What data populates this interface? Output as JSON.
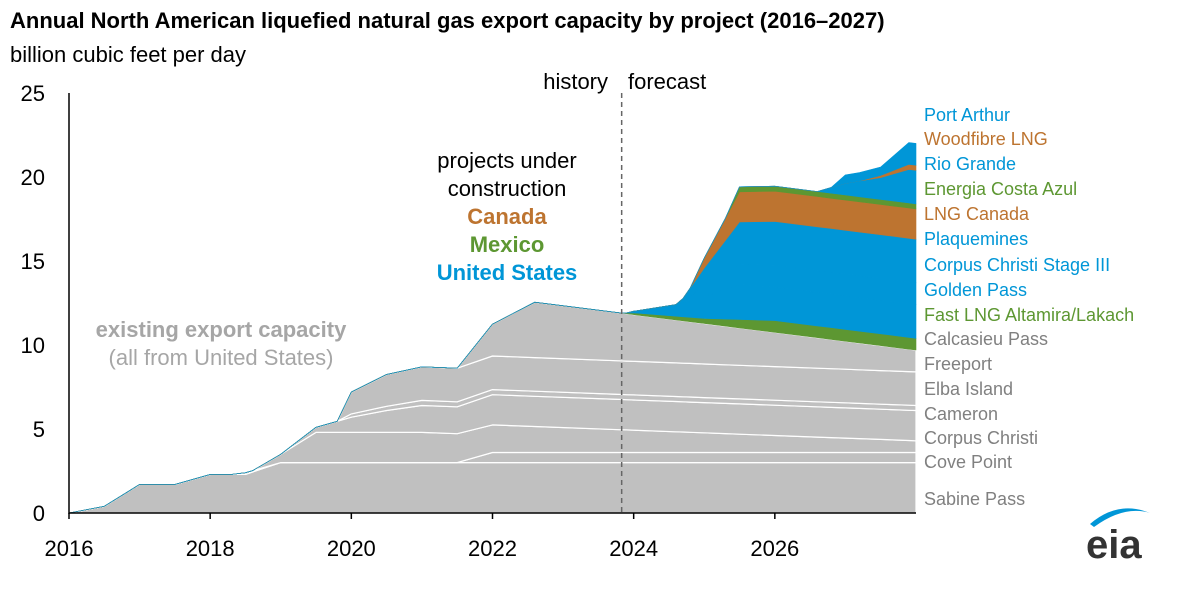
{
  "chart_data": {
    "type": "area",
    "title": "Annual North American liquefied natural gas export capacity by project (2016–2027)",
    "subtitle": "billion cubic feet per day",
    "xlim": [
      2016,
      2028
    ],
    "ylim": [
      0,
      25
    ],
    "x_ticks": [
      "2016",
      "2018",
      "2020",
      "2022",
      "2024",
      "2026"
    ],
    "y_ticks": [
      "0",
      "5",
      "10",
      "15",
      "20",
      "25"
    ],
    "history_label": "history",
    "forecast_label": "forecast",
    "divider_x": 2023.83,
    "grid": false,
    "annotation_projects": {
      "line1": "projects under",
      "line2": "construction",
      "canada": "Canada",
      "mexico": "Mexico",
      "united_states": "United States"
    },
    "annotation_existing": {
      "line1": "existing export capacity",
      "line2": "(all from United States)"
    },
    "country_colors": {
      "Canada": "#bd7430",
      "Mexico": "#5d9732",
      "United States": "#0096d7",
      "existing": "#c0c0c0"
    },
    "series": [
      {
        "name": "Sabine Pass",
        "color": "#c0c0c0",
        "x": [
          2016,
          2016.5,
          2017,
          2017.5,
          2018,
          2018.5,
          2019,
          2019.5,
          2020,
          2028
        ],
        "y": [
          0,
          0.4,
          1.7,
          1.7,
          2.3,
          2.3,
          3.0,
          3.0,
          3.0,
          3.0
        ]
      },
      {
        "name": "Cove Point",
        "color": "#c0c0c0",
        "x": [
          2016,
          2018.3,
          2018.5,
          2019,
          2021.5,
          2022,
          2028
        ],
        "y": [
          0,
          0,
          0.1,
          0,
          0,
          0.6,
          0.6
        ]
      },
      {
        "name": "Corpus Christi",
        "color": "#c0c0c0",
        "x": [
          2016,
          2018.6,
          2019,
          2019.5,
          2021,
          2028
        ],
        "y": [
          0,
          0,
          0.5,
          1.8,
          1.8,
          0.7
        ]
      },
      {
        "name": "Cameron",
        "color": "#c0c0c0",
        "x": [
          2016,
          2019,
          2019.5,
          2020,
          2020.5,
          2021,
          2021.5,
          2022,
          2028
        ],
        "y": [
          0,
          0,
          0.3,
          0.9,
          1.3,
          1.6,
          1.6,
          1.8,
          1.8
        ]
      },
      {
        "name": "Elba Island",
        "color": "#c0c0c0",
        "x": [
          2016,
          2019.8,
          2020,
          2021,
          2022,
          2028
        ],
        "y": [
          0,
          0,
          0.2,
          0.3,
          0.3,
          0.3
        ]
      },
      {
        "name": "Freeport",
        "color": "#c0c0c0",
        "x": [
          2016,
          2019.8,
          2020,
          2020.5,
          2021,
          2021.5,
          2022,
          2028
        ],
        "y": [
          0,
          0,
          1.3,
          1.9,
          2.0,
          2.0,
          2.0,
          2.0
        ]
      },
      {
        "name": "Calcasieu Pass",
        "color": "#c0c0c0",
        "x": [
          2016,
          2021.5,
          2022,
          2022.6,
          2028
        ],
        "y": [
          0,
          0,
          1.9,
          3.3,
          1.3
        ]
      },
      {
        "name": "Fast LNG Altamira/Lakach",
        "color": "#5d9732",
        "x": [
          2016,
          2023.8,
          2024,
          2025,
          2026,
          2028
        ],
        "y": [
          0,
          0,
          0.1,
          0.3,
          0.7,
          0.7
        ]
      },
      {
        "name": "Golden Pass",
        "color": "#0096d7",
        "x": [
          2016,
          2023.9,
          2024.6,
          2025,
          2025.5,
          2026,
          2028
        ],
        "y": [
          0,
          0,
          0.7,
          1.3,
          2.1,
          2.0,
          2.0
        ]
      },
      {
        "name": "Corpus Christi Stage III",
        "color": "#0096d7",
        "x": [
          2016,
          2024.7,
          2025,
          2025.5,
          2026,
          2028
        ],
        "y": [
          0,
          0,
          0.7,
          1.2,
          1.3,
          1.3
        ]
      },
      {
        "name": "Plaquemines",
        "color": "#0096d7",
        "x": [
          2016,
          2024.6,
          2025,
          2025.5,
          2026,
          2028
        ],
        "y": [
          0,
          0,
          1.0,
          2.5,
          2.6,
          2.6
        ]
      },
      {
        "name": "LNG Canada",
        "color": "#bd7430",
        "x": [
          2016,
          2024.8,
          2025,
          2025.5,
          2026,
          2028
        ],
        "y": [
          0,
          0,
          0.6,
          1.8,
          1.8,
          1.8
        ]
      },
      {
        "name": "Energia Costa Azul",
        "color": "#5d9732",
        "x": [
          2016,
          2025.3,
          2025.5,
          2026,
          2028
        ],
        "y": [
          0,
          0,
          0.3,
          0.3,
          0.3
        ]
      },
      {
        "name": "Rio Grande",
        "color": "#0096d7",
        "x": [
          2016,
          2026.6,
          2027,
          2027.5,
          2027.9,
          2028
        ],
        "y": [
          0,
          0,
          0.7,
          1.3,
          2.0,
          2.0
        ]
      },
      {
        "name": "Woodfibre LNG",
        "color": "#bd7430",
        "x": [
          2016,
          2027.2,
          2027.9,
          2028
        ],
        "y": [
          0,
          0,
          0.3,
          0.3
        ]
      },
      {
        "name": "Port Arthur",
        "color": "#0096d7",
        "x": [
          2016,
          2026.8,
          2027,
          2027.5,
          2027.9,
          2028
        ],
        "y": [
          0,
          0,
          0.5,
          0.5,
          1.3,
          1.3
        ]
      }
    ],
    "legend_labels": [
      {
        "text": "Port Arthur",
        "color": "#0096d7"
      },
      {
        "text": "Woodfibre LNG",
        "color": "#bd7430"
      },
      {
        "text": "Rio Grande",
        "color": "#0096d7"
      },
      {
        "text": "Energia Costa Azul",
        "color": "#5d9732"
      },
      {
        "text": "LNG Canada",
        "color": "#bd7430"
      },
      {
        "text": "Plaquemines",
        "color": "#0096d7"
      },
      {
        "text": "Corpus Christi Stage III",
        "color": "#0096d7"
      },
      {
        "text": "Golden Pass",
        "color": "#0096d7"
      },
      {
        "text": "Fast LNG Altamira/Lakach",
        "color": "#5d9732"
      },
      {
        "text": "Calcasieu Pass",
        "color": "#808080"
      },
      {
        "text": "Freeport",
        "color": "#808080"
      },
      {
        "text": "Elba Island",
        "color": "#808080"
      },
      {
        "text": "Cameron",
        "color": "#808080"
      },
      {
        "text": "Corpus Christi",
        "color": "#808080"
      },
      {
        "text": "Cove Point",
        "color": "#808080"
      },
      {
        "text": "Sabine Pass",
        "color": "#808080"
      }
    ]
  },
  "logo": {
    "text": "eia"
  }
}
